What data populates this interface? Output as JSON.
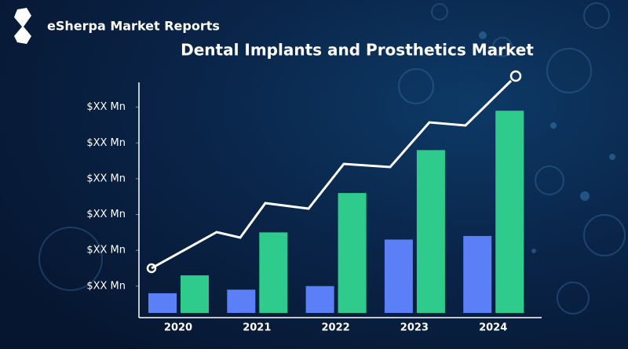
{
  "brand": "eSherpa Market Reports",
  "chart_data": {
    "type": "bar",
    "title": "Dental Implants and Prosthetics Market",
    "categories": [
      "2020",
      "2021",
      "2022",
      "2023",
      "2024"
    ],
    "series": [
      {
        "color": "#5b7ff7",
        "values": [
          0.8,
          0.9,
          1.0,
          2.3,
          2.4
        ]
      },
      {
        "color": "#2ecb8c",
        "values": [
          1.3,
          2.5,
          3.6,
          4.8,
          5.9
        ]
      }
    ],
    "ylim": [
      0.25,
      7
    ],
    "yticks": [
      {
        "value": 1,
        "label": "$XX Mn"
      },
      {
        "value": 2,
        "label": "$XX Mn"
      },
      {
        "value": 3,
        "label": "$XX Mn"
      },
      {
        "value": 4,
        "label": "$XX Mn"
      },
      {
        "value": 5,
        "label": "$XX Mn"
      },
      {
        "value": 6,
        "label": "$XX Mn"
      }
    ]
  }
}
